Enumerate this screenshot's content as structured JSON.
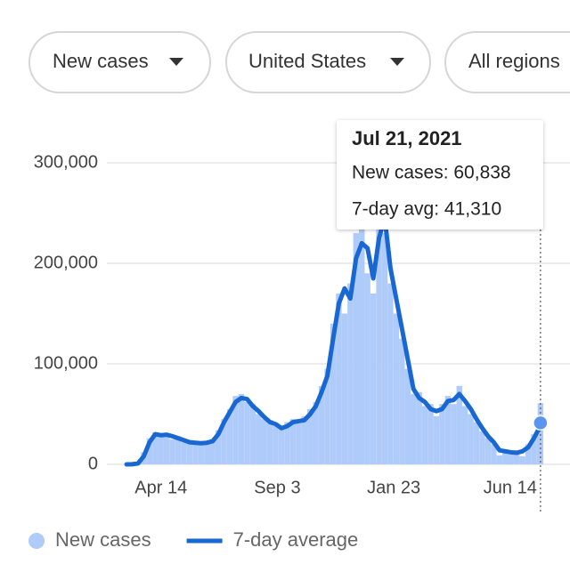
{
  "filters": [
    "New cases",
    "United States",
    "All regions"
  ],
  "chart_data": {
    "type": "bar",
    "x": [
      "2020-03-03",
      "2020-03-10",
      "2020-03-17",
      "2020-03-24",
      "2020-03-31",
      "2020-04-07",
      "2020-04-14",
      "2020-04-21",
      "2020-04-28",
      "2020-05-05",
      "2020-05-12",
      "2020-05-19",
      "2020-05-26",
      "2020-06-02",
      "2020-06-09",
      "2020-06-16",
      "2020-06-23",
      "2020-06-30",
      "2020-07-07",
      "2020-07-14",
      "2020-07-21",
      "2020-07-28",
      "2020-08-04",
      "2020-08-11",
      "2020-08-18",
      "2020-08-25",
      "2020-09-01",
      "2020-09-08",
      "2020-09-15",
      "2020-09-22",
      "2020-09-29",
      "2020-10-06",
      "2020-10-13",
      "2020-10-20",
      "2020-10-27",
      "2020-11-03",
      "2020-11-10",
      "2020-11-17",
      "2020-11-24",
      "2020-12-01",
      "2020-12-08",
      "2020-12-15",
      "2020-12-22",
      "2020-12-29",
      "2021-01-05",
      "2021-01-12",
      "2021-01-19",
      "2021-01-26",
      "2021-02-02",
      "2021-02-09",
      "2021-02-16",
      "2021-02-23",
      "2021-03-02",
      "2021-03-09",
      "2021-03-16",
      "2021-03-23",
      "2021-03-30",
      "2021-04-06",
      "2021-04-13",
      "2021-04-20",
      "2021-04-27",
      "2021-05-04",
      "2021-05-11",
      "2021-05-18",
      "2021-05-25",
      "2021-06-01",
      "2021-06-08",
      "2021-06-15",
      "2021-06-22",
      "2021-06-29",
      "2021-07-06",
      "2021-07-13",
      "2021-07-20",
      "2021-07-21"
    ],
    "series": [
      {
        "name": "New cases",
        "type": "bar",
        "color": "#aecbfa",
        "values": [
          0,
          200,
          1500,
          12000,
          26000,
          32000,
          27000,
          31000,
          25000,
          28000,
          22000,
          24000,
          20000,
          23000,
          22000,
          25000,
          34000,
          45000,
          55000,
          68000,
          70000,
          62000,
          60000,
          50000,
          45000,
          44000,
          38000,
          35000,
          42000,
          45000,
          41000,
          48000,
          55000,
          62000,
          78000,
          95000,
          140000,
          170000,
          150000,
          180000,
          230000,
          240000,
          190000,
          170000,
          260000,
          230000,
          180000,
          150000,
          125000,
          95000,
          70000,
          72000,
          58000,
          60000,
          48000,
          60000,
          68000,
          60000,
          78000,
          58000,
          50000,
          42000,
          33000,
          26000,
          20000,
          9000,
          15000,
          10000,
          14000,
          8000,
          20000,
          30000,
          45000,
          60838
        ]
      },
      {
        "name": "7-day average",
        "type": "line",
        "color": "#1967d2",
        "values": [
          0,
          100,
          1000,
          8000,
          22000,
          30000,
          29000,
          29500,
          28000,
          26000,
          24000,
          22000,
          21500,
          21000,
          21500,
          23000,
          30000,
          42000,
          52000,
          62000,
          66000,
          65000,
          58000,
          53000,
          47000,
          42000,
          40000,
          36000,
          38000,
          42000,
          43000,
          44000,
          50000,
          58000,
          72000,
          88000,
          125000,
          160000,
          175000,
          165000,
          205000,
          220000,
          215000,
          185000,
          225000,
          245000,
          195000,
          165000,
          135000,
          105000,
          75000,
          66000,
          62000,
          55000,
          53000,
          55000,
          63000,
          64000,
          70000,
          63000,
          55000,
          45000,
          36000,
          28000,
          22000,
          14000,
          13000,
          12000,
          11500,
          13000,
          17000,
          26000,
          37000,
          41310
        ]
      }
    ],
    "xlim": [
      "2020-02-08",
      "2021-08-26"
    ],
    "xticks": [
      {
        "value": "2020-04-14",
        "label": "Apr 14"
      },
      {
        "value": "2020-09-03",
        "label": "Sep 3"
      },
      {
        "value": "2021-01-23",
        "label": "Jan 23"
      },
      {
        "value": "2021-06-14",
        "label": "Jun 14"
      }
    ],
    "ylim": [
      0,
      350000
    ],
    "yticks": [
      0,
      {
        "value": 100000,
        "label": "100,000"
      },
      {
        "value": 200000,
        "label": "200,000"
      },
      {
        "value": 300000,
        "label": "300,000"
      }
    ],
    "grid": true,
    "tooltip": {
      "title": "Jul 21, 2021",
      "lines": [
        "New cases: 60,838",
        "7-day avg: 41,310"
      ]
    }
  }
}
